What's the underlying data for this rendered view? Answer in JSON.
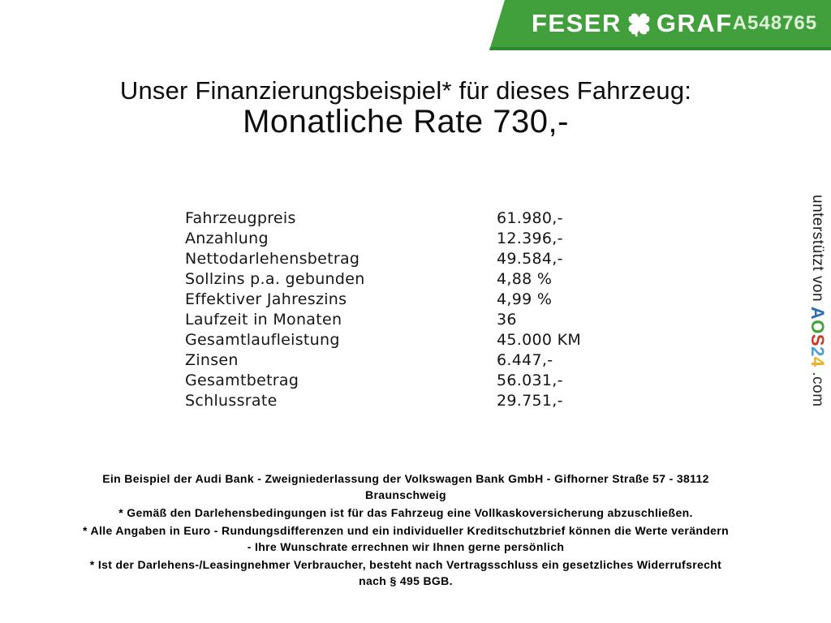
{
  "banner": {
    "brand_left": "FESER",
    "brand_right": "GRAF",
    "vehicle_id": "A548765",
    "colors": {
      "green": "#42a03c",
      "green_dark": "#2e8a30",
      "id_text": "#ddf1d8"
    }
  },
  "title": {
    "line1": "Unser Finanzierungsbeispiel* für dieses Fahrzeug:",
    "line2": "Monatliche Rate 730,-"
  },
  "finance_table": {
    "rows": [
      {
        "label": "Fahrzeugpreis",
        "value": "61.980,-"
      },
      {
        "label": "Anzahlung",
        "value": "12.396,-"
      },
      {
        "label": "Nettodarlehensbetrag",
        "value": "49.584,-"
      },
      {
        "label": "Sollzins p.a. gebunden",
        "value": "4,88 %"
      },
      {
        "label": "Effektiver Jahreszins",
        "value": "4,99 %"
      },
      {
        "label": "Laufzeit in Monaten",
        "value": "36"
      },
      {
        "label": "Gesamtlaufleistung",
        "value": "45.000 KM"
      },
      {
        "label": "Zinsen",
        "value": "6.447,-"
      },
      {
        "label": "Gesamtbetrag",
        "value": "56.031,-"
      },
      {
        "label": "Schlussrate",
        "value": "29.751,-"
      }
    ]
  },
  "vertical_credit": {
    "prefix": "unterstützt von ",
    "logo_letters": [
      {
        "char": "A",
        "color": "#2a6db5"
      },
      {
        "char": "O",
        "color": "#3fa435"
      },
      {
        "char": "S",
        "color": "#cf3727"
      },
      {
        "char": "2",
        "color": "#4a9fd4"
      },
      {
        "char": "4",
        "color": "#efb01c"
      }
    ],
    "suffix": " .com"
  },
  "footer": {
    "paragraphs": [
      {
        "lines": [
          "Ein Beispiel der Audi Bank - Zweigniederlassung der Volkswagen Bank GmbH - Gifhorner Straße 57 - 38112",
          "Braunschweig"
        ]
      },
      {
        "lines": [
          "* Gemäß den Darlehensbedingungen ist für das Fahrzeug eine Vollkaskoversicherung abzuschließen."
        ]
      },
      {
        "lines": [
          "* Alle Angaben in Euro - Rundungsdifferenzen und ein individueller Kreditschutzbrief können die Werte verändern",
          "- Ihre Wunschrate errechnen wir Ihnen gerne persönlich"
        ]
      },
      {
        "lines": [
          "* Ist der Darlehens-/Leasingnehmer Verbraucher, besteht nach Vertragsschluss ein gesetzliches Widerrufsrecht",
          "nach § 495 BGB."
        ]
      }
    ]
  }
}
